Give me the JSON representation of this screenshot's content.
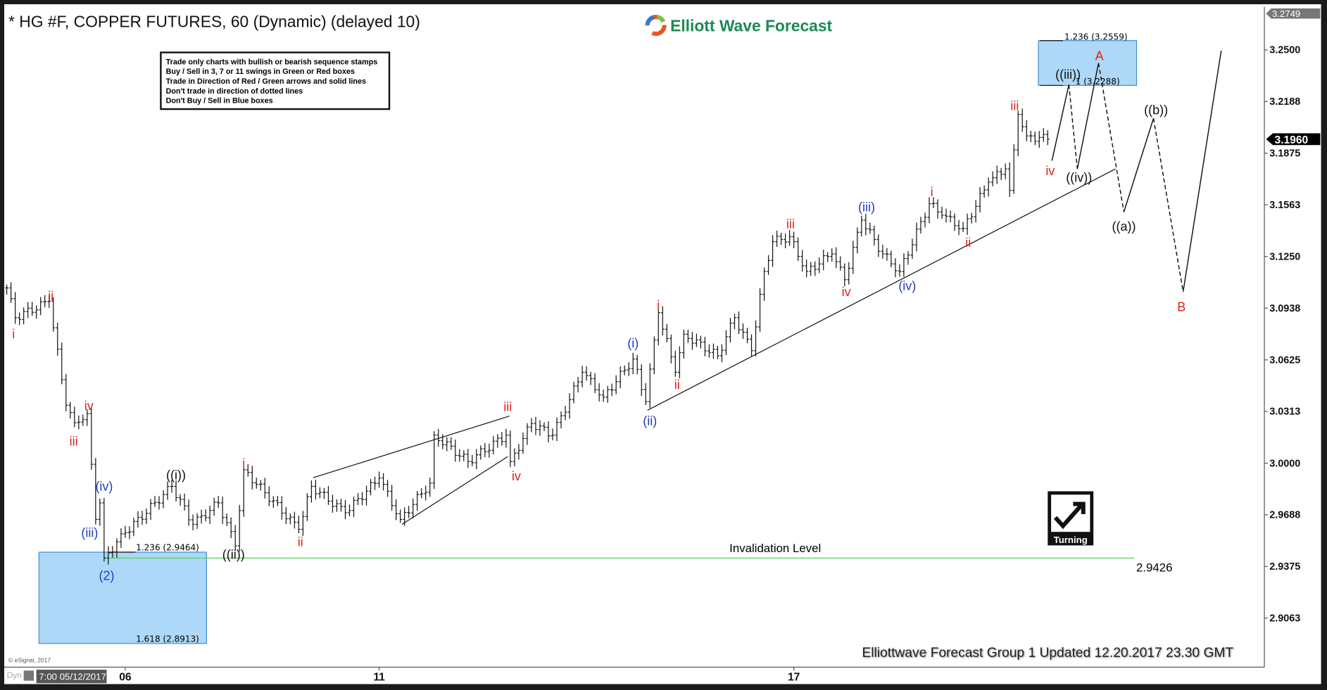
{
  "header": {
    "title": "* HG #F, COPPER FUTURES, 60 (Dynamic) (delayed 10)",
    "brand": "Elliott Wave Forecast"
  },
  "rules_box": [
    "Trade only charts with bullish or bearish sequence stamps",
    "Buy / Sell in 3, 7 or 11 swings in Green or Red boxes",
    "Trade in Direction of Red / Green arrows and solid lines",
    "Don't trade in direction of dotted lines",
    "Don't Buy / Sell in Blue boxes"
  ],
  "footer": {
    "updated": "Elliottwave Forecast Group 1 Updated 12.20.2017 23.30 GMT",
    "copyright": "© eSignal, 2017",
    "dyn": "Dyn",
    "cursor_date": "7:00 05/12/2017"
  },
  "stamp": {
    "label": "Turning",
    "icon": "check-arrow-up-right-icon"
  },
  "colors": {
    "red": "#e0231c",
    "blue": "#1f3fbf",
    "black": "#111111",
    "box": "#aed8f7",
    "box_border": "#3a8fd6",
    "invalidation": "#5fd35f"
  },
  "chart_data": {
    "type": "ohlc",
    "y_axis": {
      "ticks": [
        "3.2500",
        "3.2188",
        "3.1875",
        "3.1563",
        "3.1250",
        "3.0938",
        "3.0625",
        "3.0313",
        "3.0000",
        "2.9688",
        "2.9375",
        "2.9063"
      ],
      "top_value": "3.2749",
      "last_price": "3.1960",
      "range": [
        2.88,
        3.2749
      ]
    },
    "x_ticks": [
      {
        "label": "06",
        "bar": 28
      },
      {
        "label": "11",
        "bar": 88
      },
      {
        "label": "17",
        "bar": 186
      }
    ],
    "price_pivots": [
      [
        0,
        3.106
      ],
      [
        2,
        3.088
      ],
      [
        10,
        3.098
      ],
      [
        14,
        3.035
      ],
      [
        16,
        3.0245
      ],
      [
        19,
        3.03
      ],
      [
        21,
        2.966
      ],
      [
        22,
        2.976
      ],
      [
        23,
        2.9426
      ],
      [
        28,
        2.958
      ],
      [
        39,
        2.986
      ],
      [
        44,
        2.963
      ],
      [
        50,
        2.976
      ],
      [
        54,
        2.95
      ],
      [
        56,
        2.996
      ],
      [
        69,
        2.96
      ],
      [
        72,
        2.986
      ],
      [
        80,
        2.97
      ],
      [
        88,
        2.991
      ],
      [
        93,
        2.966
      ],
      [
        100,
        2.988
      ],
      [
        101,
        3.017
      ],
      [
        109,
        3.001
      ],
      [
        118,
        3.017
      ],
      [
        119,
        3.001
      ],
      [
        124,
        3.024
      ],
      [
        129,
        3.017
      ],
      [
        136,
        3.055
      ],
      [
        141,
        3.04
      ],
      [
        148,
        3.063
      ],
      [
        151,
        3.0372
      ],
      [
        154,
        3.091
      ],
      [
        158,
        3.055
      ],
      [
        160,
        3.078
      ],
      [
        168,
        3.065
      ],
      [
        172,
        3.088
      ],
      [
        176,
        3.068
      ],
      [
        179,
        3.116
      ],
      [
        181,
        3.134
      ],
      [
        185,
        3.137
      ],
      [
        189,
        3.116
      ],
      [
        195,
        3.1266
      ],
      [
        198,
        3.111
      ],
      [
        202,
        3.147
      ],
      [
        207,
        3.1266
      ],
      [
        211,
        3.116
      ],
      [
        218,
        3.157
      ],
      [
        221,
        3.15
      ],
      [
        226,
        3.142
      ],
      [
        232,
        3.17
      ],
      [
        236,
        3.178
      ],
      [
        237,
        3.165
      ],
      [
        239,
        3.211
      ],
      [
        241,
        3.198
      ],
      [
        246,
        3.196
      ]
    ],
    "projection": [
      {
        "from": [
          247,
          3.183
        ],
        "to": [
          251,
          3.229
        ],
        "style": "solid"
      },
      {
        "from": [
          251,
          3.229
        ],
        "to": [
          253,
          3.178
        ],
        "style": "dashed"
      },
      {
        "from": [
          253,
          3.178
        ],
        "to": [
          258,
          3.242
        ],
        "style": "solid"
      },
      {
        "from": [
          258,
          3.242
        ],
        "to": [
          264,
          3.152
        ],
        "style": "dashed"
      },
      {
        "from": [
          264,
          3.152
        ],
        "to": [
          271,
          3.2086
        ],
        "style": "solid"
      },
      {
        "from": [
          271,
          3.2086
        ],
        "to": [
          278,
          3.1037
        ],
        "style": "dashed"
      },
      {
        "from": [
          278,
          3.1037
        ],
        "to": [
          287,
          3.2495
        ],
        "style": "solid"
      }
    ],
    "trendlines": [
      {
        "from": [
          151.4,
          3.032
        ],
        "to": [
          262,
          3.178
        ]
      },
      {
        "from": [
          72.4,
          2.9912
        ],
        "to": [
          118.8,
          3.0285
        ]
      },
      {
        "from": [
          93.4,
          2.963
        ],
        "to": [
          118.4,
          3.004
        ]
      }
    ],
    "invalidation": {
      "label": "Invalidation Level",
      "value": "2.9426"
    },
    "fib_levels": [
      "1.236 (2.9464)",
      "1.618 (2.8913)",
      "1.236 (3.2559)",
      "1 (3.2288)"
    ],
    "wave_labels": [
      {
        "text": "i",
        "color": "red"
      },
      {
        "text": "ii",
        "color": "red"
      },
      {
        "text": "iii",
        "color": "red"
      },
      {
        "text": "iv",
        "color": "red"
      },
      {
        "text": "(iii)",
        "color": "blue"
      },
      {
        "text": "(iv)",
        "color": "blue"
      },
      {
        "text": "(2)",
        "color": "blue"
      },
      {
        "text": "((i))",
        "color": "black"
      },
      {
        "text": "((ii))",
        "color": "black"
      },
      {
        "text": "i",
        "color": "red"
      },
      {
        "text": "ii",
        "color": "red"
      },
      {
        "text": "iii",
        "color": "red"
      },
      {
        "text": "iv",
        "color": "red"
      },
      {
        "text": "(i)",
        "color": "blue"
      },
      {
        "text": "(ii)",
        "color": "blue"
      },
      {
        "text": "i",
        "color": "red"
      },
      {
        "text": "ii",
        "color": "red"
      },
      {
        "text": "iii",
        "color": "red"
      },
      {
        "text": "iv",
        "color": "red"
      },
      {
        "text": "(iii)",
        "color": "blue"
      },
      {
        "text": "(iv)",
        "color": "blue"
      },
      {
        "text": "i",
        "color": "red"
      },
      {
        "text": "ii",
        "color": "red"
      },
      {
        "text": "iii",
        "color": "red"
      },
      {
        "text": "iv",
        "color": "red"
      },
      {
        "text": "((iii))",
        "color": "black"
      },
      {
        "text": "((iv))",
        "color": "black"
      },
      {
        "text": "A",
        "color": "red"
      },
      {
        "text": "((a))",
        "color": "black"
      },
      {
        "text": "((b))",
        "color": "black"
      },
      {
        "text": "B",
        "color": "red"
      }
    ]
  }
}
